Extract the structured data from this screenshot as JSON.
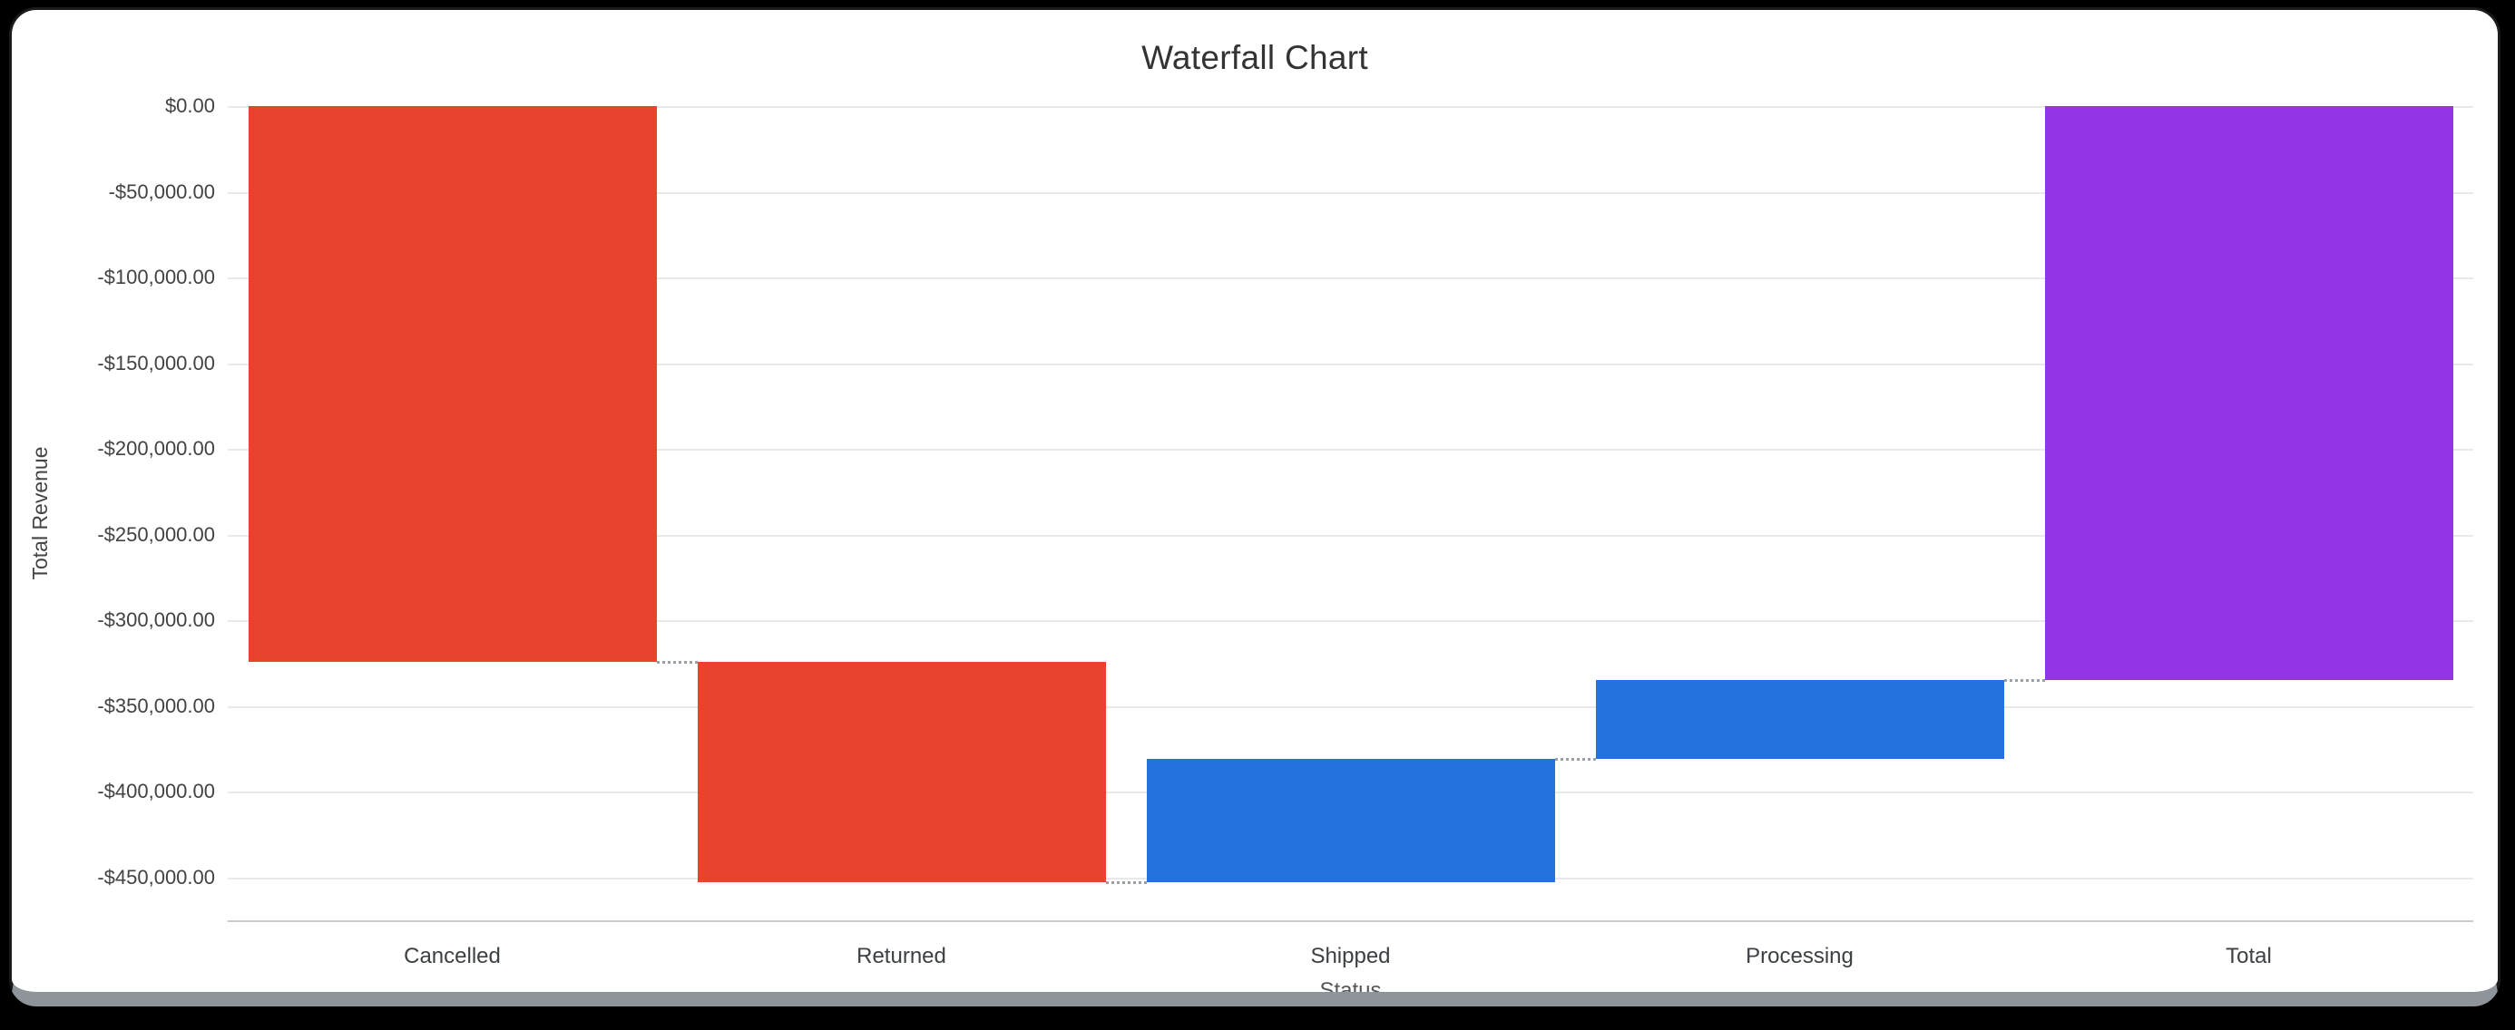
{
  "window": {
    "frame_color": "#000000",
    "card_color": "#ffffff",
    "bottom_edge_color": "#8f949a"
  },
  "chart_data": {
    "type": "waterfall",
    "title": "Waterfall Chart",
    "xlabel": "Status",
    "ylabel": "Total Revenue",
    "categories": [
      "Cancelled",
      "Returned",
      "Shipped",
      "Processing",
      "Total"
    ],
    "bars": [
      {
        "label": "Cancelled",
        "start": 0,
        "end": -324000,
        "delta": -324000,
        "role": "decrease",
        "color": "#e8432c"
      },
      {
        "label": "Returned",
        "start": -324000,
        "end": -453000,
        "delta": -129000,
        "role": "decrease",
        "color": "#e8432c"
      },
      {
        "label": "Shipped",
        "start": -453000,
        "end": -381000,
        "delta": 72000,
        "role": "increase",
        "color": "#2372e0"
      },
      {
        "label": "Processing",
        "start": -381000,
        "end": -335000,
        "delta": 46000,
        "role": "increase",
        "color": "#2372e0"
      },
      {
        "label": "Total",
        "start": 0,
        "end": -335000,
        "delta": -335000,
        "role": "total",
        "color": "#9334e6"
      }
    ],
    "y_ticks": [
      {
        "value": 0,
        "label": "$0.00"
      },
      {
        "value": -50000,
        "label": "-$50,000.00"
      },
      {
        "value": -100000,
        "label": "-$100,000.00"
      },
      {
        "value": -150000,
        "label": "-$150,000.00"
      },
      {
        "value": -200000,
        "label": "-$200,000.00"
      },
      {
        "value": -250000,
        "label": "-$250,000.00"
      },
      {
        "value": -300000,
        "label": "-$300,000.00"
      },
      {
        "value": -350000,
        "label": "-$350,000.00"
      },
      {
        "value": -400000,
        "label": "-$400,000.00"
      },
      {
        "value": -450000,
        "label": "-$450,000.00"
      }
    ],
    "ylim": [
      -475000,
      0
    ],
    "grid": true,
    "legend": "none",
    "connector_style": "dotted",
    "colors": {
      "decrease": "#e8432c",
      "increase": "#2372e0",
      "total": "#9334e6",
      "grid": "#e9e9e9",
      "axis_line": "#cccccc",
      "connector": "#9aa0a6",
      "text": "#3c4043"
    }
  }
}
